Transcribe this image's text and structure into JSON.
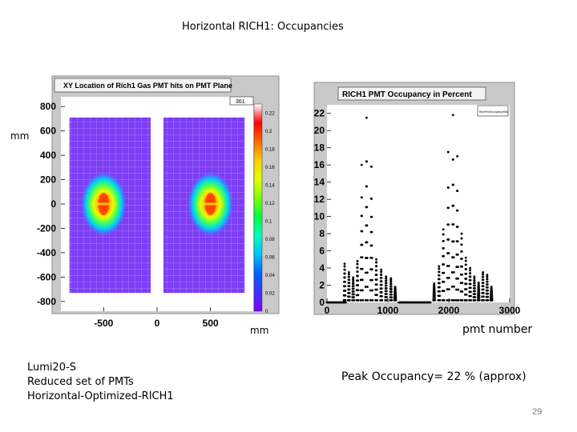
{
  "slide": {
    "title": "Horizontal RICH1: Occupancies",
    "mm_left": "mm",
    "mm_bottom": "mm",
    "pmt_label": "pmt number",
    "notes": [
      "Lumi20-S",
      "Reduced set of PMTs",
      "Horizontal-Optimized-RICH1"
    ],
    "peak": "Peak Occupancy= 22 % (approx)",
    "page_number": "29"
  },
  "chart_data": [
    {
      "type": "heatmap",
      "title": "XY Location of Rich1 Gas PMT hits on PMT Plane",
      "stats_box": "361",
      "xlabel": "mm",
      "ylabel": "mm",
      "x_ticks": [
        "-500",
        "0",
        "500"
      ],
      "y_ticks": [
        "800",
        "600",
        "400",
        "200",
        "0",
        "-200",
        "-400",
        "-600",
        "-800"
      ],
      "xlim": [
        -900,
        900
      ],
      "ylim": [
        -880,
        880
      ],
      "panels_x": [
        [
          -820,
          -60
        ],
        [
          60,
          820
        ]
      ],
      "panels_y": [
        -730,
        710
      ],
      "hotspots": [
        {
          "x": -500,
          "y": 0
        },
        {
          "x": 500,
          "y": 0
        }
      ],
      "colorbar": {
        "range": [
          0,
          0.23
        ],
        "labels": [
          "0.22",
          "0.2",
          "0.18",
          "0.16",
          "0.14",
          "0.12",
          "0.1",
          "0.08",
          "0.06",
          "0.04",
          "0.02",
          "0"
        ],
        "colors": [
          "#ffffff",
          "#ff0000",
          "#ff6a00",
          "#ffd000",
          "#e0ff00",
          "#80ff00",
          "#00ff40",
          "#00ffc0",
          "#00c0ff",
          "#0060ff",
          "#4030ff",
          "#8000ff"
        ]
      },
      "colors": {
        "background": "#7d3cf5",
        "frame": "#bdbdbd"
      }
    },
    {
      "type": "scatter",
      "title": "RICH1 PMT Occupancy in Percent",
      "legend_text": "RichPmtOccupancyHist",
      "xlabel": "pmt number",
      "ylabel": "",
      "x_ticks": [
        "0",
        "1000",
        "2000",
        "3000"
      ],
      "y_ticks": [
        "22",
        "20",
        "18",
        "16",
        "14",
        "12",
        "10",
        "8",
        "6",
        "4",
        "2",
        "0"
      ],
      "xlim": [
        0,
        3000
      ],
      "ylim": [
        0,
        23
      ],
      "segments": [
        {
          "x": [
            0,
            320
          ],
          "y": 0
        },
        {
          "x": [
            1180,
            1700
          ],
          "y": 0
        }
      ],
      "peaks": [
        {
          "x": 290,
          "y": 4.5
        },
        {
          "x": 360,
          "y": 3.5
        },
        {
          "x": 430,
          "y": 2.9
        },
        {
          "x": 500,
          "y": 4.8
        },
        {
          "x": 570,
          "y": 16.0
        },
        {
          "x": 650,
          "y": 21.5
        },
        {
          "x": 730,
          "y": 15.8
        },
        {
          "x": 810,
          "y": 5.0
        },
        {
          "x": 890,
          "y": 3.8
        },
        {
          "x": 970,
          "y": 3.0
        },
        {
          "x": 1050,
          "y": 2.8
        },
        {
          "x": 1120,
          "y": 1.8
        },
        {
          "x": 1760,
          "y": 2.2
        },
        {
          "x": 1840,
          "y": 4.2
        },
        {
          "x": 1910,
          "y": 8.5
        },
        {
          "x": 1990,
          "y": 17.5
        },
        {
          "x": 2070,
          "y": 21.8
        },
        {
          "x": 2140,
          "y": 17.0
        },
        {
          "x": 2210,
          "y": 8.0
        },
        {
          "x": 2280,
          "y": 5.2
        },
        {
          "x": 2350,
          "y": 4.0
        },
        {
          "x": 2420,
          "y": 3.0
        },
        {
          "x": 2490,
          "y": 2.3
        },
        {
          "x": 2560,
          "y": 3.5
        },
        {
          "x": 2630,
          "y": 3.2
        },
        {
          "x": 2700,
          "y": 1.8
        }
      ],
      "marker_color": "#000000"
    }
  ]
}
